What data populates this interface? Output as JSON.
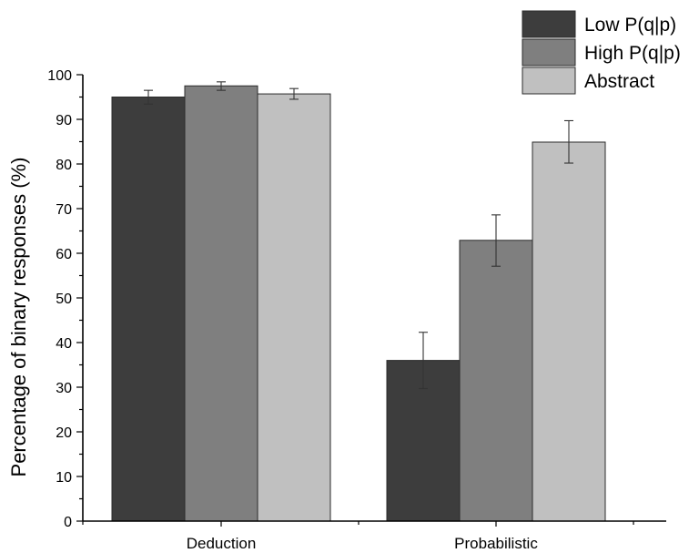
{
  "chart_data": {
    "type": "bar",
    "categories": [
      "Deduction",
      "Probabilistic"
    ],
    "ylabel": "Percentage of binary responses (%)",
    "xlabel": "",
    "ylim": [
      0,
      100
    ],
    "yticks": [
      0,
      10,
      20,
      30,
      40,
      50,
      60,
      70,
      80,
      90,
      100
    ],
    "grid": false,
    "legend_position": "top-right",
    "series": [
      {
        "name": "Low P(q|p)",
        "color": "#3d3d3d",
        "values": [
          95,
          36
        ],
        "error_low": [
          93.4,
          29.7
        ],
        "error_high": [
          96.5,
          42.3
        ]
      },
      {
        "name": "High P(q|p)",
        "color": "#7f7f7f",
        "values": [
          97.5,
          62.9
        ],
        "error_low": [
          96.5,
          57.1
        ],
        "error_high": [
          98.4,
          68.6
        ]
      },
      {
        "name": "Abstract",
        "color": "#c0c0c0",
        "values": [
          95.7,
          84.9
        ],
        "error_low": [
          94.5,
          80.2
        ],
        "error_high": [
          96.9,
          89.7
        ]
      }
    ]
  }
}
